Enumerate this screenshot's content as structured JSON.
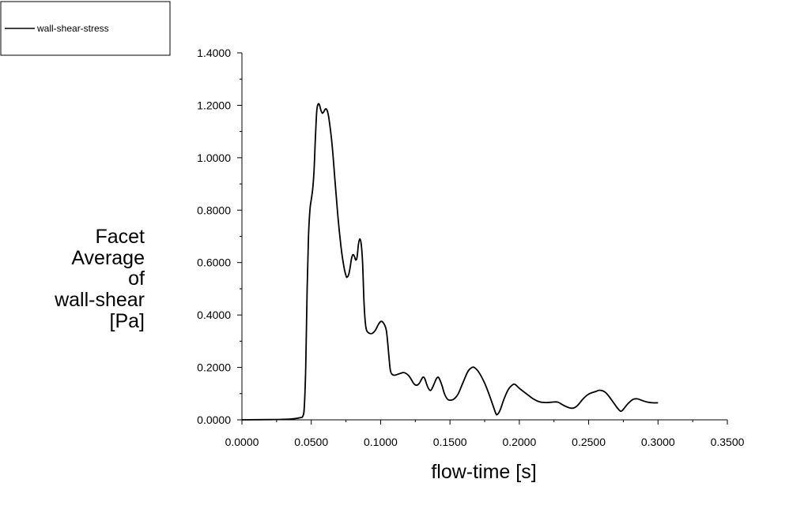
{
  "chart_data": {
    "type": "line",
    "title": "",
    "xlabel": "flow-time [s]",
    "ylabel_lines": [
      "Facet",
      "Average",
      "of",
      "wall-shear",
      "[Pa]"
    ],
    "xlim": [
      0,
      0.35
    ],
    "ylim": [
      0,
      1.4
    ],
    "x_ticks": [
      "0.0000",
      "0.0500",
      "0.1000",
      "0.1500",
      "0.2000",
      "0.2500",
      "0.3000",
      "0.3500"
    ],
    "y_ticks": [
      "0.0000",
      "0.2000",
      "0.4000",
      "0.6000",
      "0.8000",
      "1.0000",
      "1.2000",
      "1.4000"
    ],
    "x_tick_values": [
      0,
      0.05,
      0.1,
      0.15,
      0.2,
      0.25,
      0.3,
      0.35
    ],
    "y_tick_values": [
      0,
      0.2,
      0.4,
      0.6,
      0.8,
      1.0,
      1.2,
      1.4
    ],
    "grid": false,
    "legend_position": "top-left",
    "series": [
      {
        "name": "wall-shear-stress",
        "color": "#000000",
        "points": [
          [
            0.0,
            0.0
          ],
          [
            0.02,
            0.001
          ],
          [
            0.035,
            0.003
          ],
          [
            0.042,
            0.008
          ],
          [
            0.044,
            0.015
          ],
          [
            0.045,
            0.05
          ],
          [
            0.046,
            0.2
          ],
          [
            0.047,
            0.5
          ],
          [
            0.048,
            0.7
          ],
          [
            0.049,
            0.8
          ],
          [
            0.05,
            0.84
          ],
          [
            0.051,
            0.88
          ],
          [
            0.052,
            0.95
          ],
          [
            0.053,
            1.08
          ],
          [
            0.054,
            1.18
          ],
          [
            0.055,
            1.205
          ],
          [
            0.056,
            1.2
          ],
          [
            0.057,
            1.18
          ],
          [
            0.058,
            1.17
          ],
          [
            0.059,
            1.175
          ],
          [
            0.06,
            1.185
          ],
          [
            0.061,
            1.185
          ],
          [
            0.062,
            1.17
          ],
          [
            0.063,
            1.14
          ],
          [
            0.065,
            1.05
          ],
          [
            0.067,
            0.92
          ],
          [
            0.069,
            0.79
          ],
          [
            0.071,
            0.68
          ],
          [
            0.073,
            0.6
          ],
          [
            0.075,
            0.55
          ],
          [
            0.076,
            0.545
          ],
          [
            0.077,
            0.555
          ],
          [
            0.078,
            0.58
          ],
          [
            0.079,
            0.615
          ],
          [
            0.08,
            0.63
          ],
          [
            0.081,
            0.625
          ],
          [
            0.082,
            0.61
          ],
          [
            0.083,
            0.62
          ],
          [
            0.084,
            0.67
          ],
          [
            0.085,
            0.69
          ],
          [
            0.086,
            0.67
          ],
          [
            0.087,
            0.6
          ],
          [
            0.088,
            0.45
          ],
          [
            0.089,
            0.37
          ],
          [
            0.09,
            0.34
          ],
          [
            0.092,
            0.33
          ],
          [
            0.094,
            0.33
          ],
          [
            0.096,
            0.34
          ],
          [
            0.098,
            0.36
          ],
          [
            0.1,
            0.375
          ],
          [
            0.102,
            0.37
          ],
          [
            0.104,
            0.345
          ],
          [
            0.105,
            0.3
          ],
          [
            0.106,
            0.24
          ],
          [
            0.107,
            0.19
          ],
          [
            0.108,
            0.175
          ],
          [
            0.11,
            0.17
          ],
          [
            0.113,
            0.175
          ],
          [
            0.116,
            0.18
          ],
          [
            0.118,
            0.178
          ],
          [
            0.12,
            0.17
          ],
          [
            0.122,
            0.155
          ],
          [
            0.124,
            0.138
          ],
          [
            0.126,
            0.132
          ],
          [
            0.128,
            0.14
          ],
          [
            0.13,
            0.16
          ],
          [
            0.131,
            0.163
          ],
          [
            0.132,
            0.155
          ],
          [
            0.134,
            0.125
          ],
          [
            0.136,
            0.112
          ],
          [
            0.138,
            0.13
          ],
          [
            0.14,
            0.155
          ],
          [
            0.141,
            0.162
          ],
          [
            0.142,
            0.16
          ],
          [
            0.144,
            0.135
          ],
          [
            0.146,
            0.1
          ],
          [
            0.148,
            0.08
          ],
          [
            0.15,
            0.075
          ],
          [
            0.153,
            0.08
          ],
          [
            0.156,
            0.1
          ],
          [
            0.16,
            0.15
          ],
          [
            0.163,
            0.185
          ],
          [
            0.166,
            0.2
          ],
          [
            0.168,
            0.198
          ],
          [
            0.171,
            0.18
          ],
          [
            0.175,
            0.14
          ],
          [
            0.178,
            0.1
          ],
          [
            0.181,
            0.055
          ],
          [
            0.183,
            0.025
          ],
          [
            0.184,
            0.02
          ],
          [
            0.186,
            0.035
          ],
          [
            0.189,
            0.08
          ],
          [
            0.192,
            0.115
          ],
          [
            0.195,
            0.133
          ],
          [
            0.197,
            0.135
          ],
          [
            0.2,
            0.12
          ],
          [
            0.205,
            0.1
          ],
          [
            0.21,
            0.08
          ],
          [
            0.215,
            0.068
          ],
          [
            0.22,
            0.066
          ],
          [
            0.225,
            0.068
          ],
          [
            0.228,
            0.067
          ],
          [
            0.232,
            0.055
          ],
          [
            0.236,
            0.046
          ],
          [
            0.239,
            0.045
          ],
          [
            0.242,
            0.055
          ],
          [
            0.246,
            0.08
          ],
          [
            0.25,
            0.098
          ],
          [
            0.255,
            0.108
          ],
          [
            0.258,
            0.113
          ],
          [
            0.262,
            0.105
          ],
          [
            0.266,
            0.08
          ],
          [
            0.27,
            0.05
          ],
          [
            0.273,
            0.033
          ],
          [
            0.275,
            0.04
          ],
          [
            0.278,
            0.06
          ],
          [
            0.282,
            0.078
          ],
          [
            0.285,
            0.08
          ],
          [
            0.288,
            0.075
          ],
          [
            0.292,
            0.068
          ],
          [
            0.296,
            0.065
          ],
          [
            0.3,
            0.065
          ]
        ]
      }
    ]
  }
}
